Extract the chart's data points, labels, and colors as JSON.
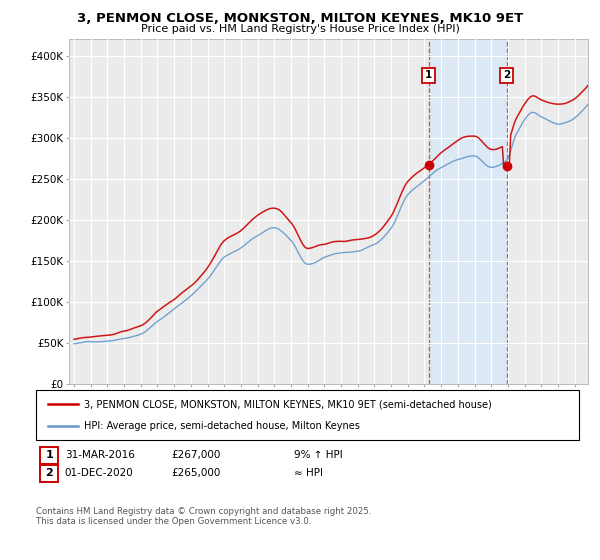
{
  "title_line1": "3, PENMON CLOSE, MONKSTON, MILTON KEYNES, MK10 9ET",
  "title_line2": "Price paid vs. HM Land Registry's House Price Index (HPI)",
  "ylim": [
    0,
    420000
  ],
  "yticks": [
    0,
    50000,
    100000,
    150000,
    200000,
    250000,
    300000,
    350000,
    400000
  ],
  "ytick_labels": [
    "£0",
    "£50K",
    "£100K",
    "£150K",
    "£200K",
    "£250K",
    "£300K",
    "£350K",
    "£400K"
  ],
  "legend_entries": [
    "3, PENMON CLOSE, MONKSTON, MILTON KEYNES, MK10 9ET (semi-detached house)",
    "HPI: Average price, semi-detached house, Milton Keynes"
  ],
  "legend_colors": [
    "#cc0000",
    "#6699cc"
  ],
  "annotation1_date": "31-MAR-2016",
  "annotation1_price": "£267,000",
  "annotation1_hpi": "9% ↑ HPI",
  "annotation2_date": "01-DEC-2020",
  "annotation2_price": "£265,000",
  "annotation2_hpi": "≈ HPI",
  "footer": "Contains HM Land Registry data © Crown copyright and database right 2025.\nThis data is licensed under the Open Government Licence v3.0.",
  "bg_color": "#ffffff",
  "plot_bg_color": "#ebebeb",
  "grid_color": "#ffffff",
  "shade_color": "#dce9f5",
  "vline_color": "#cc3333",
  "sale1_year": 2016.25,
  "sale2_year": 2020.917,
  "sale1_price": 267000,
  "sale2_price": 265000,
  "start_year": 1995,
  "end_year": 2026
}
